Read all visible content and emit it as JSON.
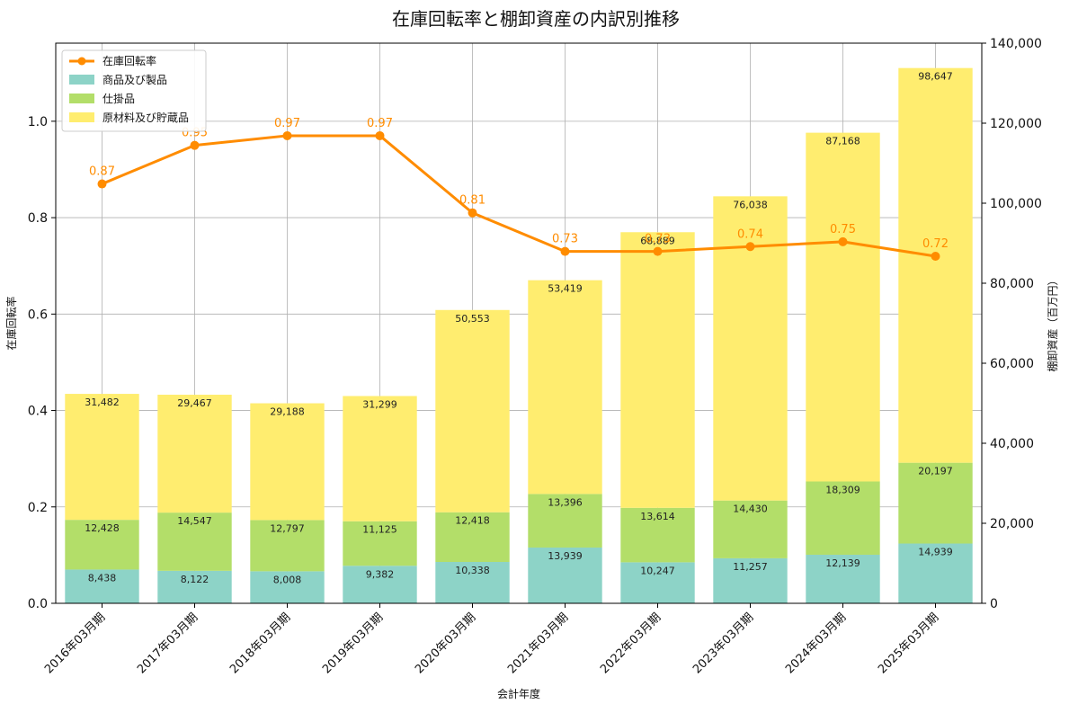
{
  "chart_data": {
    "type": "bar",
    "title": "在庫回転率と棚卸資産の内訳別推移",
    "xlabel": "会計年度",
    "ylabel_left": "在庫回転率",
    "ylabel_right": "棚卸資産（百万円）",
    "categories": [
      "2016年03月期",
      "2017年03月期",
      "2018年03月期",
      "2019年03月期",
      "2020年03月期",
      "2021年03月期",
      "2022年03月期",
      "2023年03月期",
      "2024年03月期",
      "2025年03月期"
    ],
    "stacked_series": [
      {
        "name": "商品及び製品",
        "color": "#8dd3c7",
        "values": [
          8438,
          8122,
          8008,
          9382,
          10338,
          13939,
          10247,
          11257,
          12139,
          14939
        ]
      },
      {
        "name": "仕掛品",
        "color": "#b3de69",
        "values": [
          12428,
          14547,
          12797,
          11125,
          12418,
          13396,
          13614,
          14430,
          18309,
          20197
        ]
      },
      {
        "name": "原材料及び貯蔵品",
        "color": "#ffed6f",
        "values": [
          31482,
          29467,
          29188,
          31299,
          50553,
          53419,
          68889,
          76038,
          87168,
          98647
        ]
      }
    ],
    "line_series": {
      "name": "在庫回転率",
      "color": "#ff8c00",
      "values": [
        0.87,
        0.95,
        0.97,
        0.97,
        0.81,
        0.73,
        0.73,
        0.74,
        0.75,
        0.72
      ]
    },
    "left_axis": {
      "ylim": [
        0,
        1.162
      ],
      "ticks": [
        0.0,
        0.2,
        0.4,
        0.6,
        0.8,
        1.0
      ],
      "tick_labels": [
        "0.0",
        "0.2",
        "0.4",
        "0.6",
        "0.8",
        "1.0"
      ]
    },
    "right_axis": {
      "ylim": [
        0,
        140000
      ],
      "ticks": [
        0,
        20000,
        40000,
        60000,
        80000,
        100000,
        120000,
        140000
      ],
      "tick_labels": [
        "0",
        "20,000",
        "40,000",
        "60,000",
        "80,000",
        "100,000",
        "120,000",
        "140,000"
      ]
    },
    "legend": {
      "position": "top-left",
      "entries": [
        "在庫回転率",
        "商品及び製品",
        "仕掛品",
        "原材料及び貯蔵品"
      ]
    },
    "grid": true
  }
}
